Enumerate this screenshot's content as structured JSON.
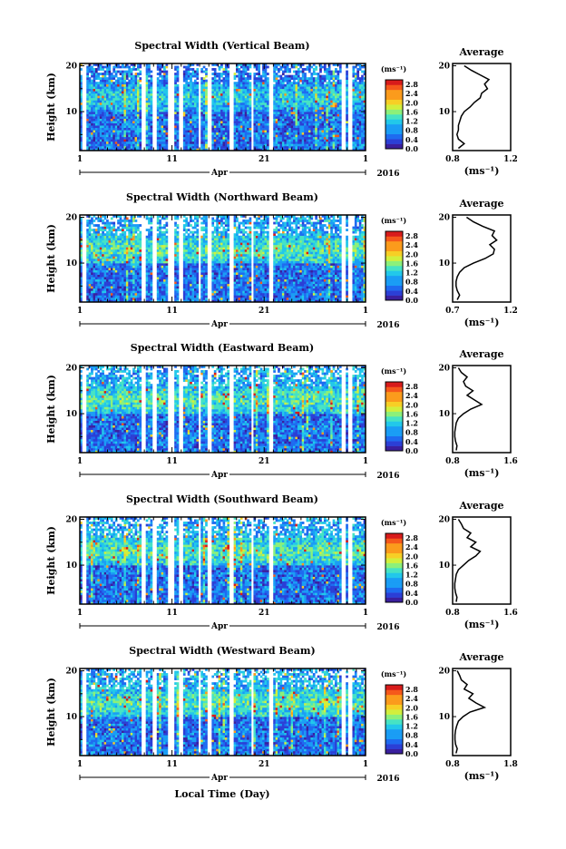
{
  "common": {
    "xlabel": "Local Time (Day)",
    "month": "Apr",
    "year": "2016",
    "x_ticks": [
      "1",
      "11",
      "21",
      "1"
    ],
    "ylabel": "Height (km)",
    "y_ticks": [
      "20",
      "10"
    ],
    "cbar_unit": "(ms⁻¹)",
    "avg_title": "Average",
    "avg_xlabel": "(ms⁻¹)"
  },
  "chart_data": [
    {
      "type": "heatmap",
      "title": "Spectral Width (Vertical Beam)",
      "x_range_days": [
        1,
        32
      ],
      "ylim_km": [
        1.5,
        20.5
      ],
      "colorbar": {
        "ticks": [
          "2.8",
          "2.4",
          "2.0",
          "1.6",
          "1.2",
          "0.8",
          "0.4",
          "0.0"
        ],
        "range": [
          0.0,
          3.0
        ]
      },
      "average_profile": {
        "xlim": [
          0.8,
          1.2
        ],
        "x_ticks": [
          "0.8",
          "1.2"
        ],
        "height_km": [
          2,
          3,
          4,
          5,
          6,
          7,
          8,
          9,
          10,
          11,
          12,
          13,
          14,
          15,
          16,
          17,
          18,
          19,
          20
        ],
        "value": [
          0.84,
          0.88,
          0.84,
          0.83,
          0.84,
          0.84,
          0.85,
          0.86,
          0.88,
          0.92,
          0.95,
          0.99,
          1.0,
          1.04,
          1.02,
          1.05,
          0.99,
          0.93,
          0.88
        ]
      }
    },
    {
      "type": "heatmap",
      "title": "Spectral Width (Northward Beam)",
      "x_range_days": [
        1,
        32
      ],
      "ylim_km": [
        1.5,
        20.5
      ],
      "colorbar": {
        "ticks": [
          "2.8",
          "2.4",
          "2.0",
          "1.6",
          "1.2",
          "0.8",
          "0.4",
          "0.0"
        ],
        "range": [
          0.0,
          3.0
        ]
      },
      "average_profile": {
        "xlim": [
          0.7,
          1.2
        ],
        "x_ticks": [
          "0.7",
          "1.2"
        ],
        "height_km": [
          2,
          3,
          4,
          5,
          6,
          7,
          8,
          9,
          10,
          11,
          12,
          13,
          14,
          15,
          16,
          17,
          18,
          19,
          20
        ],
        "value": [
          0.74,
          0.76,
          0.74,
          0.73,
          0.73,
          0.74,
          0.76,
          0.8,
          0.88,
          0.98,
          1.05,
          1.06,
          1.02,
          1.08,
          1.04,
          1.06,
          0.96,
          0.88,
          0.82
        ]
      }
    },
    {
      "type": "heatmap",
      "title": "Spectral Width (Eastward Beam)",
      "x_range_days": [
        1,
        32
      ],
      "ylim_km": [
        1.5,
        20.5
      ],
      "colorbar": {
        "ticks": [
          "2.8",
          "2.4",
          "2.0",
          "1.6",
          "1.2",
          "0.8",
          "0.4",
          "0.0"
        ],
        "range": [
          0.0,
          3.0
        ]
      },
      "average_profile": {
        "xlim": [
          0.8,
          1.6
        ],
        "x_ticks": [
          "0.8",
          "1.6"
        ],
        "height_km": [
          2,
          3,
          4,
          5,
          6,
          7,
          8,
          9,
          10,
          11,
          12,
          13,
          14,
          15,
          16,
          17,
          18,
          19,
          20
        ],
        "value": [
          0.85,
          0.86,
          0.84,
          0.83,
          0.83,
          0.84,
          0.85,
          0.88,
          0.95,
          1.05,
          1.2,
          1.1,
          1.0,
          1.08,
          0.98,
          0.95,
          1.0,
          0.92,
          0.88
        ]
      }
    },
    {
      "type": "heatmap",
      "title": "Spectral Width (Southward Beam)",
      "x_range_days": [
        1,
        32
      ],
      "ylim_km": [
        1.5,
        20.5
      ],
      "colorbar": {
        "ticks": [
          "2.8",
          "2.4",
          "2.0",
          "1.6",
          "1.2",
          "0.8",
          "0.4",
          "0.0"
        ],
        "range": [
          0.0,
          3.0
        ]
      },
      "average_profile": {
        "xlim": [
          0.8,
          1.6
        ],
        "x_ticks": [
          "0.8",
          "1.6"
        ],
        "height_km": [
          2,
          3,
          4,
          5,
          6,
          7,
          8,
          9,
          10,
          11,
          12,
          13,
          14,
          15,
          16,
          17,
          18,
          19,
          20
        ],
        "value": [
          0.85,
          0.86,
          0.84,
          0.83,
          0.83,
          0.84,
          0.85,
          0.88,
          0.95,
          1.02,
          1.12,
          1.18,
          1.05,
          1.12,
          1.0,
          1.05,
          0.95,
          0.92,
          0.88
        ]
      }
    },
    {
      "type": "heatmap",
      "title": "Spectral Width (Westward Beam)",
      "x_range_days": [
        1,
        32
      ],
      "ylim_km": [
        1.5,
        20.5
      ],
      "colorbar": {
        "ticks": [
          "2.8",
          "2.4",
          "2.0",
          "1.6",
          "1.2",
          "0.8",
          "0.4",
          "0.0"
        ],
        "range": [
          0.0,
          3.0
        ]
      },
      "average_profile": {
        "xlim": [
          0.8,
          1.8
        ],
        "x_ticks": [
          "0.8",
          "1.8"
        ],
        "height_km": [
          2,
          3,
          4,
          5,
          6,
          7,
          8,
          9,
          10,
          11,
          12,
          13,
          14,
          15,
          16,
          17,
          18,
          19,
          20
        ],
        "value": [
          0.86,
          0.88,
          0.85,
          0.84,
          0.84,
          0.85,
          0.87,
          0.9,
          0.98,
          1.1,
          1.35,
          1.2,
          1.08,
          1.15,
          1.0,
          1.05,
          0.95,
          0.92,
          0.88
        ]
      }
    }
  ]
}
